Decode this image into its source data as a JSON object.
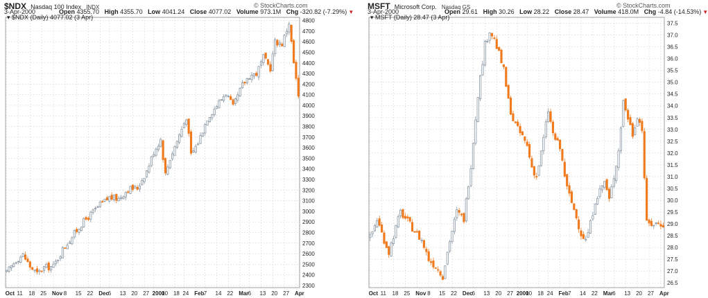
{
  "brand": "© StockCharts.com",
  "colors": {
    "up": "#9aa7b3",
    "down": "#f07a1e",
    "grid": "#d9d9d9",
    "axis": "#888888"
  },
  "chart_data": [
    {
      "type": "candlestick",
      "symbol": "$NDX",
      "name": "Nasdaq 100 Index",
      "exchange": "INDX",
      "date": "3-Apr-2000",
      "open": "4355.70",
      "high": "4355.70",
      "low": "4041.24",
      "close": "4077.02",
      "volume": "973.1M",
      "chg": "-320.82 (-7.29%)",
      "legend": "$NDX (Daily) 4077.02 (3 Apr)",
      "ylim": [
        2280,
        4830
      ],
      "yticks": [
        2300,
        2400,
        2500,
        2600,
        2700,
        2800,
        2900,
        3000,
        3100,
        3200,
        3300,
        3400,
        3500,
        3600,
        3700,
        3800,
        3900,
        4000,
        4100,
        4200,
        4300,
        4400,
        4500,
        4600,
        4700,
        4800
      ],
      "xlabels": [
        {
          "label": "Oct",
          "i": 0,
          "bold": true
        },
        {
          "label": "11",
          "i": 5
        },
        {
          "label": "18",
          "i": 10
        },
        {
          "label": "25",
          "i": 15
        },
        {
          "label": "Nov",
          "i": 20,
          "bold": true
        },
        {
          "label": "8",
          "i": 25
        },
        {
          "label": "15",
          "i": 30
        },
        {
          "label": "22",
          "i": 35
        },
        {
          "label": "Dec",
          "i": 40,
          "bold": true
        },
        {
          "label": "6",
          "i": 44
        },
        {
          "label": "13",
          "i": 49
        },
        {
          "label": "20",
          "i": 54
        },
        {
          "label": "27",
          "i": 59
        },
        {
          "label": "2000",
          "i": 63,
          "bold": true
        },
        {
          "label": "10",
          "i": 67
        },
        {
          "label": "18",
          "i": 72
        },
        {
          "label": "24",
          "i": 76
        },
        {
          "label": "Feb",
          "i": 81,
          "bold": true
        },
        {
          "label": "7",
          "i": 85
        },
        {
          "label": "14",
          "i": 90
        },
        {
          "label": "22",
          "i": 95
        },
        {
          "label": "Mar",
          "i": 100,
          "bold": true
        },
        {
          "label": "6",
          "i": 104
        },
        {
          "label": "13",
          "i": 109
        },
        {
          "label": "20",
          "i": 114
        },
        {
          "label": "27",
          "i": 119
        },
        {
          "label": "Apr",
          "i": 124,
          "bold": true
        }
      ],
      "n": 126,
      "anchors": [
        [
          0,
          2420
        ],
        [
          4,
          2540
        ],
        [
          7,
          2590
        ],
        [
          10,
          2480
        ],
        [
          13,
          2410
        ],
        [
          16,
          2470
        ],
        [
          20,
          2480
        ],
        [
          24,
          2640
        ],
        [
          28,
          2760
        ],
        [
          32,
          2880
        ],
        [
          36,
          2970
        ],
        [
          40,
          3060
        ],
        [
          44,
          3130
        ],
        [
          48,
          3120
        ],
        [
          52,
          3210
        ],
        [
          56,
          3220
        ],
        [
          60,
          3380
        ],
        [
          63,
          3560
        ],
        [
          66,
          3680
        ],
        [
          68,
          3350
        ],
        [
          70,
          3500
        ],
        [
          74,
          3720
        ],
        [
          77,
          3890
        ],
        [
          79,
          3530
        ],
        [
          82,
          3650
        ],
        [
          86,
          3880
        ],
        [
          90,
          4000
        ],
        [
          94,
          4120
        ],
        [
          97,
          3980
        ],
        [
          101,
          4190
        ],
        [
          104,
          4280
        ],
        [
          107,
          4300
        ],
        [
          110,
          4450
        ],
        [
          113,
          4350
        ],
        [
          115,
          4600
        ],
        [
          118,
          4580
        ],
        [
          121,
          4780
        ],
        [
          123,
          4400
        ],
        [
          125,
          4077
        ]
      ]
    },
    {
      "type": "candlestick",
      "symbol": "MSFT",
      "name": "Microsoft Corp.",
      "exchange": "Nasdaq GS",
      "date": "3-Apr-2000",
      "open": "29.61",
      "high": "30.26",
      "low": "28.22",
      "close": "28.47",
      "volume": "418.0M",
      "chg": "-4.84 (-14.53%)",
      "legend": "MSFT (Daily) 28.47 (3 Apr)",
      "ylim": [
        26.3,
        37.75
      ],
      "yticks": [
        26.5,
        27.0,
        27.5,
        28.0,
        28.5,
        29.0,
        29.5,
        30.0,
        30.5,
        31.0,
        31.5,
        32.0,
        32.5,
        33.0,
        33.5,
        34.0,
        34.5,
        35.0,
        35.5,
        36.0,
        36.5,
        37.0,
        37.5
      ],
      "xlabels": [
        {
          "label": "Oct",
          "i": 0,
          "bold": true
        },
        {
          "label": "11",
          "i": 5
        },
        {
          "label": "18",
          "i": 10
        },
        {
          "label": "25",
          "i": 15
        },
        {
          "label": "Nov",
          "i": 20,
          "bold": true
        },
        {
          "label": "8",
          "i": 25
        },
        {
          "label": "15",
          "i": 30
        },
        {
          "label": "22",
          "i": 35
        },
        {
          "label": "Dec",
          "i": 40,
          "bold": true
        },
        {
          "label": "6",
          "i": 44
        },
        {
          "label": "13",
          "i": 49
        },
        {
          "label": "20",
          "i": 54
        },
        {
          "label": "27",
          "i": 59
        },
        {
          "label": "2000",
          "i": 63,
          "bold": true
        },
        {
          "label": "10",
          "i": 67
        },
        {
          "label": "18",
          "i": 72
        },
        {
          "label": "24",
          "i": 76
        },
        {
          "label": "Feb",
          "i": 81,
          "bold": true
        },
        {
          "label": "7",
          "i": 85
        },
        {
          "label": "14",
          "i": 90
        },
        {
          "label": "22",
          "i": 95
        },
        {
          "label": "Mar",
          "i": 100,
          "bold": true
        },
        {
          "label": "6",
          "i": 104
        },
        {
          "label": "13",
          "i": 109
        },
        {
          "label": "20",
          "i": 114
        },
        {
          "label": "27",
          "i": 119
        },
        {
          "label": "Apr",
          "i": 124,
          "bold": true
        }
      ],
      "n": 126,
      "anchors": [
        [
          0,
          28.4
        ],
        [
          3,
          29.2
        ],
        [
          5,
          28.6
        ],
        [
          8,
          27.8
        ],
        [
          10,
          28.5
        ],
        [
          13,
          29.5
        ],
        [
          16,
          29.1
        ],
        [
          19,
          28.7
        ],
        [
          22,
          28.3
        ],
        [
          25,
          27.5
        ],
        [
          28,
          27.2
        ],
        [
          31,
          26.8
        ],
        [
          34,
          28.3
        ],
        [
          37,
          29.5
        ],
        [
          40,
          29.2
        ],
        [
          43,
          31.5
        ],
        [
          46,
          34.5
        ],
        [
          49,
          36.6
        ],
        [
          51,
          37.2
        ],
        [
          53,
          36.8
        ],
        [
          55,
          36.2
        ],
        [
          57,
          35.5
        ],
        [
          59,
          34.2
        ],
        [
          61,
          33.4
        ],
        [
          63,
          33.0
        ],
        [
          65,
          32.7
        ],
        [
          67,
          32.3
        ],
        [
          69,
          31.4
        ],
        [
          71,
          31.0
        ],
        [
          73,
          32.0
        ],
        [
          76,
          33.8
        ],
        [
          78,
          32.8
        ],
        [
          81,
          32.2
        ],
        [
          84,
          30.5
        ],
        [
          87,
          29.6
        ],
        [
          90,
          28.6
        ],
        [
          92,
          28.3
        ],
        [
          94,
          29.0
        ],
        [
          96,
          30.0
        ],
        [
          98,
          30.4
        ],
        [
          100,
          30.8
        ],
        [
          102,
          30.0
        ],
        [
          104,
          31.0
        ],
        [
          106,
          32.1
        ],
        [
          108,
          34.2
        ],
        [
          110,
          33.5
        ],
        [
          112,
          32.8
        ],
        [
          114,
          33.6
        ],
        [
          116,
          33.0
        ],
        [
          118,
          29.0
        ]
      ]
    }
  ]
}
